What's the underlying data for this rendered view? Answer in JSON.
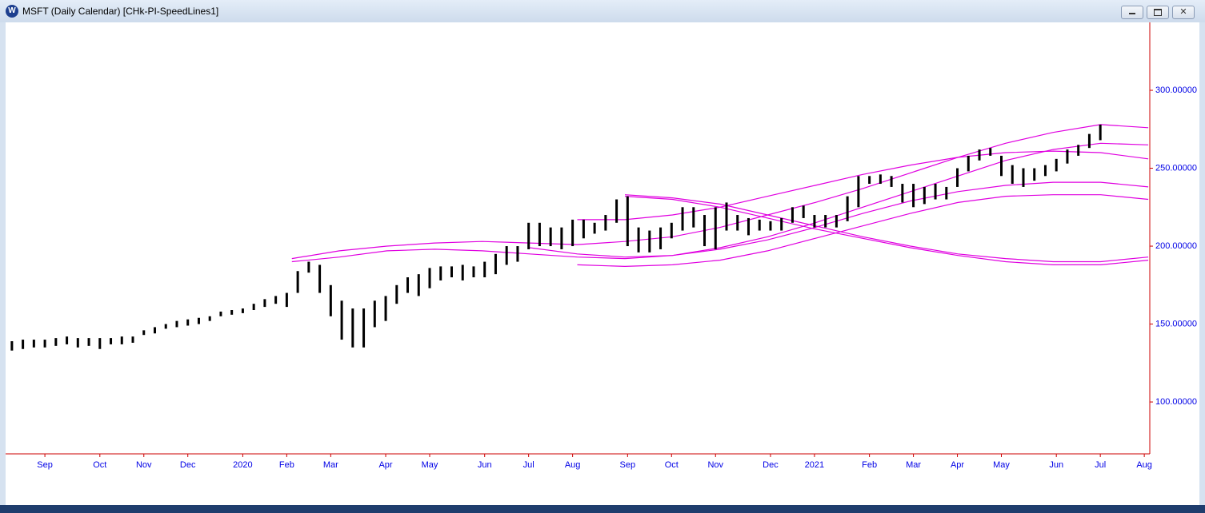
{
  "window": {
    "title": "MSFT (Daily Calendar) [CHk-PI-SpeedLines1]"
  },
  "chart_data": {
    "type": "range-bar",
    "color": "#000000",
    "categories": [
      null,
      null,
      null,
      "Sep",
      null,
      null,
      null,
      null,
      "Oct",
      null,
      null,
      null,
      "Nov",
      null,
      null,
      null,
      "Dec",
      null,
      null,
      null,
      null,
      "2020",
      null,
      null,
      null,
      "Feb",
      null,
      null,
      null,
      "Mar",
      null,
      null,
      null,
      null,
      "Apr",
      null,
      null,
      null,
      "May",
      null,
      null,
      null,
      null,
      "Jun",
      null,
      null,
      null,
      "Jul",
      null,
      null,
      null,
      "Aug",
      null,
      null,
      null,
      null,
      "Sep",
      null,
      null,
      null,
      "Oct",
      null,
      null,
      null,
      "Nov",
      null,
      null,
      null,
      null,
      "Dec",
      null,
      null,
      null,
      "2021",
      null,
      null,
      null,
      null,
      "Feb",
      null,
      null,
      null,
      "Mar",
      null,
      null,
      null,
      "Apr",
      null,
      null,
      null,
      "May",
      null,
      null,
      null,
      null,
      "Jun",
      null,
      null,
      null,
      "Jul",
      null,
      null,
      null,
      "Aug"
    ],
    "high": [
      139,
      140,
      140,
      140,
      141,
      142,
      141,
      141,
      141,
      141,
      142,
      142,
      146,
      148,
      150,
      152,
      153,
      154,
      155,
      158,
      159,
      160,
      163,
      166,
      168,
      170,
      184,
      190,
      188,
      175,
      165,
      160,
      160,
      165,
      168,
      175,
      180,
      182,
      186,
      187,
      187,
      188,
      187,
      190,
      195,
      200,
      200,
      215,
      215,
      212,
      212,
      217,
      217,
      215,
      220,
      230,
      232,
      212,
      210,
      212,
      215,
      225,
      225,
      220,
      225,
      228,
      220,
      218,
      217,
      216,
      218,
      225,
      226,
      220,
      220,
      220,
      232,
      245,
      245,
      246,
      245,
      240,
      240,
      238,
      240,
      238,
      250,
      258,
      262,
      263,
      258,
      252,
      250,
      250,
      252,
      256,
      262,
      265,
      272,
      278,
      null,
      null,
      null,
      null
    ],
    "low": [
      133,
      134,
      135,
      135,
      136,
      137,
      135,
      136,
      134,
      137,
      137,
      138,
      143,
      144,
      147,
      148,
      149,
      150,
      152,
      155,
      156,
      157,
      159,
      161,
      163,
      161,
      170,
      183,
      170,
      155,
      140,
      135,
      135,
      148,
      152,
      163,
      170,
      168,
      173,
      178,
      180,
      178,
      180,
      180,
      182,
      188,
      190,
      198,
      200,
      200,
      198,
      200,
      205,
      208,
      210,
      215,
      200,
      196,
      196,
      198,
      205,
      210,
      212,
      200,
      198,
      210,
      210,
      207,
      210,
      210,
      210,
      215,
      218,
      212,
      212,
      212,
      216,
      225,
      240,
      240,
      238,
      228,
      225,
      227,
      230,
      230,
      238,
      248,
      255,
      258,
      245,
      240,
      238,
      242,
      245,
      248,
      253,
      258,
      263,
      268,
      null,
      null,
      null,
      null
    ],
    "speed_lines": {
      "color": "#e000e0",
      "categories": [
        null,
        null,
        null,
        null,
        null,
        null,
        null,
        null,
        null,
        null,
        null,
        null,
        null,
        null,
        null,
        null,
        null,
        null,
        null,
        null,
        null,
        null,
        null,
        null,
        null
      ],
      "lines": [
        [
          null,
          null,
          null,
          null,
          null,
          null,
          192,
          197,
          200,
          202,
          203,
          202,
          201,
          203,
          206,
          212,
          220,
          228,
          237,
          247,
          257,
          266,
          273,
          278,
          276
        ],
        [
          null,
          null,
          null,
          null,
          null,
          null,
          190,
          193,
          197,
          198,
          197,
          195,
          193,
          192,
          194,
          199,
          206,
          215,
          225,
          235,
          245,
          255,
          262,
          266,
          265
        ],
        [
          null,
          null,
          null,
          null,
          null,
          null,
          null,
          null,
          null,
          null,
          null,
          199,
          195,
          193,
          194,
          198,
          204,
          212,
          221,
          229,
          235,
          239,
          241,
          241,
          238
        ],
        [
          null,
          null,
          null,
          null,
          null,
          null,
          null,
          null,
          null,
          null,
          null,
          null,
          188,
          187,
          188,
          191,
          197,
          205,
          213,
          221,
          228,
          232,
          233,
          233,
          230
        ],
        [
          null,
          null,
          null,
          null,
          null,
          null,
          null,
          null,
          null,
          null,
          null,
          null,
          217,
          217,
          220,
          225,
          232,
          239,
          246,
          252,
          257,
          260,
          261,
          260,
          256
        ],
        [
          null,
          null,
          null,
          null,
          null,
          null,
          null,
          null,
          null,
          null,
          null,
          null,
          null,
          232,
          230,
          225,
          218,
          211,
          205,
          199,
          194,
          190,
          188,
          188,
          191
        ],
        [
          null,
          null,
          null,
          null,
          null,
          null,
          null,
          null,
          null,
          null,
          null,
          null,
          null,
          233,
          231,
          227,
          220,
          213,
          206,
          200,
          195,
          192,
          190,
          190,
          193
        ]
      ]
    },
    "ylim": [
      66.7,
      343.6
    ],
    "yticks": [
      {
        "value": 100,
        "label": "100.00000"
      },
      {
        "value": 150,
        "label": "150.00000"
      },
      {
        "value": 200,
        "label": "200.00000"
      },
      {
        "value": 250,
        "label": "250.00000"
      },
      {
        "value": 300,
        "label": "300.00000"
      }
    ],
    "axis_color": "#cc0000"
  }
}
